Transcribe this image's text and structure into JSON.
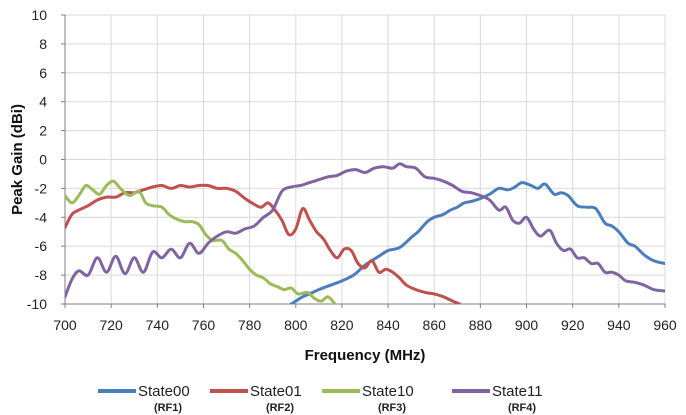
{
  "chart_data": {
    "type": "line",
    "title": "",
    "xlabel": "Frequency (MHz)",
    "ylabel": "Peak Gain (dBi)",
    "xlim": [
      700,
      960
    ],
    "ylim": [
      -10,
      10
    ],
    "x_ticks": [
      "700",
      "720",
      "740",
      "760",
      "780",
      "800",
      "820",
      "840",
      "860",
      "880",
      "900",
      "920",
      "940",
      "960"
    ],
    "y_ticks": [
      "10",
      "8",
      "6",
      "4",
      "2",
      "0",
      "-2",
      "-4",
      "-6",
      "-8",
      "-10"
    ],
    "grid": true,
    "legend_placement": "bottom",
    "series": [
      {
        "name": "State00",
        "sub": "(RF1)",
        "color": "#4a7ebb",
        "points": [
          [
            798,
            -10
          ],
          [
            800,
            -9.8
          ],
          [
            803,
            -9.5
          ],
          [
            806,
            -9.3
          ],
          [
            810,
            -9.0
          ],
          [
            815,
            -8.7
          ],
          [
            820,
            -8.4
          ],
          [
            825,
            -8.0
          ],
          [
            828,
            -7.6
          ],
          [
            830,
            -7.3
          ],
          [
            833,
            -7.0
          ],
          [
            836,
            -6.7
          ],
          [
            840,
            -6.3
          ],
          [
            845,
            -6.1
          ],
          [
            850,
            -5.4
          ],
          [
            853,
            -5.0
          ],
          [
            857,
            -4.3
          ],
          [
            860,
            -4.0
          ],
          [
            864,
            -3.8
          ],
          [
            867,
            -3.5
          ],
          [
            870,
            -3.3
          ],
          [
            873,
            -3.0
          ],
          [
            876,
            -2.9
          ],
          [
            880,
            -2.7
          ],
          [
            884,
            -2.4
          ],
          [
            888,
            -2.0
          ],
          [
            892,
            -2.1
          ],
          [
            895,
            -1.9
          ],
          [
            898,
            -1.6
          ],
          [
            902,
            -1.8
          ],
          [
            905,
            -2.0
          ],
          [
            908,
            -1.7
          ],
          [
            912,
            -2.4
          ],
          [
            915,
            -2.3
          ],
          [
            918,
            -2.5
          ],
          [
            922,
            -3.2
          ],
          [
            926,
            -3.3
          ],
          [
            930,
            -3.4
          ],
          [
            934,
            -4.4
          ],
          [
            937,
            -4.6
          ],
          [
            940,
            -5.0
          ],
          [
            944,
            -5.8
          ],
          [
            947,
            -6.0
          ],
          [
            951,
            -6.6
          ],
          [
            955,
            -7.0
          ],
          [
            960,
            -7.2
          ]
        ]
      },
      {
        "name": "State01",
        "sub": "(RF2)",
        "color": "#c0504d",
        "points": [
          [
            700,
            -4.7
          ],
          [
            703,
            -3.8
          ],
          [
            706,
            -3.5
          ],
          [
            710,
            -3.2
          ],
          [
            714,
            -2.8
          ],
          [
            718,
            -2.6
          ],
          [
            722,
            -2.6
          ],
          [
            726,
            -2.3
          ],
          [
            730,
            -2.3
          ],
          [
            734,
            -2.1
          ],
          [
            738,
            -1.9
          ],
          [
            742,
            -1.8
          ],
          [
            746,
            -2.0
          ],
          [
            750,
            -1.8
          ],
          [
            754,
            -1.9
          ],
          [
            758,
            -1.8
          ],
          [
            762,
            -1.8
          ],
          [
            766,
            -2.0
          ],
          [
            770,
            -2.0
          ],
          [
            774,
            -2.2
          ],
          [
            778,
            -2.7
          ],
          [
            782,
            -3.1
          ],
          [
            785,
            -3.3
          ],
          [
            788,
            -3.0
          ],
          [
            791,
            -3.5
          ],
          [
            794,
            -4.2
          ],
          [
            797,
            -5.2
          ],
          [
            800,
            -4.8
          ],
          [
            803,
            -3.4
          ],
          [
            806,
            -4.2
          ],
          [
            809,
            -5.0
          ],
          [
            812,
            -5.5
          ],
          [
            815,
            -6.3
          ],
          [
            818,
            -6.8
          ],
          [
            821,
            -6.2
          ],
          [
            824,
            -6.3
          ],
          [
            827,
            -7.2
          ],
          [
            830,
            -7.5
          ],
          [
            833,
            -7.0
          ],
          [
            836,
            -7.8
          ],
          [
            839,
            -7.6
          ],
          [
            842,
            -7.8
          ],
          [
            845,
            -8.2
          ],
          [
            848,
            -8.7
          ],
          [
            852,
            -9.0
          ],
          [
            856,
            -9.2
          ],
          [
            860,
            -9.3
          ],
          [
            864,
            -9.5
          ],
          [
            868,
            -9.8
          ],
          [
            871,
            -10.0
          ]
        ]
      },
      {
        "name": "State10",
        "sub": "(RF3)",
        "color": "#9bbb59",
        "points": [
          [
            700,
            -2.5
          ],
          [
            703,
            -3.0
          ],
          [
            706,
            -2.5
          ],
          [
            709,
            -1.8
          ],
          [
            712,
            -2.1
          ],
          [
            715,
            -2.4
          ],
          [
            718,
            -1.8
          ],
          [
            721,
            -1.5
          ],
          [
            724,
            -2.0
          ],
          [
            728,
            -2.5
          ],
          [
            732,
            -2.2
          ],
          [
            735,
            -3.0
          ],
          [
            738,
            -3.2
          ],
          [
            742,
            -3.3
          ],
          [
            745,
            -3.8
          ],
          [
            748,
            -4.1
          ],
          [
            752,
            -4.3
          ],
          [
            755,
            -4.3
          ],
          [
            758,
            -4.5
          ],
          [
            761,
            -5.2
          ],
          [
            764,
            -5.6
          ],
          [
            768,
            -5.6
          ],
          [
            771,
            -6.2
          ],
          [
            774,
            -6.5
          ],
          [
            777,
            -7.0
          ],
          [
            780,
            -7.6
          ],
          [
            783,
            -8.0
          ],
          [
            786,
            -8.2
          ],
          [
            789,
            -8.6
          ],
          [
            792,
            -8.8
          ],
          [
            795,
            -9.0
          ],
          [
            798,
            -8.9
          ],
          [
            801,
            -9.3
          ],
          [
            805,
            -9.2
          ],
          [
            808,
            -9.6
          ],
          [
            811,
            -9.8
          ],
          [
            814,
            -9.5
          ],
          [
            817,
            -10.0
          ]
        ]
      },
      {
        "name": "State11",
        "sub": "(RF4)",
        "color": "#8064a2",
        "points": [
          [
            700,
            -9.5
          ],
          [
            703,
            -8.3
          ],
          [
            706,
            -7.7
          ],
          [
            710,
            -8.0
          ],
          [
            714,
            -6.8
          ],
          [
            718,
            -7.8
          ],
          [
            722,
            -6.7
          ],
          [
            726,
            -7.9
          ],
          [
            730,
            -6.8
          ],
          [
            734,
            -7.8
          ],
          [
            738,
            -6.4
          ],
          [
            742,
            -6.8
          ],
          [
            746,
            -6.2
          ],
          [
            750,
            -6.8
          ],
          [
            754,
            -5.8
          ],
          [
            758,
            -6.5
          ],
          [
            762,
            -5.8
          ],
          [
            766,
            -5.3
          ],
          [
            770,
            -5.0
          ],
          [
            774,
            -5.1
          ],
          [
            778,
            -4.8
          ],
          [
            782,
            -4.6
          ],
          [
            786,
            -4.0
          ],
          [
            790,
            -3.5
          ],
          [
            794,
            -2.2
          ],
          [
            798,
            -1.9
          ],
          [
            802,
            -1.8
          ],
          [
            806,
            -1.6
          ],
          [
            810,
            -1.4
          ],
          [
            814,
            -1.2
          ],
          [
            818,
            -1.1
          ],
          [
            822,
            -0.8
          ],
          [
            826,
            -0.7
          ],
          [
            830,
            -0.9
          ],
          [
            834,
            -0.6
          ],
          [
            838,
            -0.5
          ],
          [
            842,
            -0.6
          ],
          [
            845,
            -0.3
          ],
          [
            848,
            -0.5
          ],
          [
            852,
            -0.6
          ],
          [
            856,
            -1.2
          ],
          [
            860,
            -1.3
          ],
          [
            864,
            -1.5
          ],
          [
            868,
            -1.8
          ],
          [
            872,
            -2.2
          ],
          [
            876,
            -2.3
          ],
          [
            880,
            -2.5
          ],
          [
            884,
            -2.8
          ],
          [
            888,
            -3.5
          ],
          [
            891,
            -3.3
          ],
          [
            894,
            -4.2
          ],
          [
            897,
            -4.4
          ],
          [
            900,
            -4.0
          ],
          [
            903,
            -4.8
          ],
          [
            906,
            -5.3
          ],
          [
            910,
            -4.9
          ],
          [
            913,
            -5.8
          ],
          [
            916,
            -6.3
          ],
          [
            919,
            -6.2
          ],
          [
            922,
            -6.8
          ],
          [
            925,
            -6.8
          ],
          [
            928,
            -7.2
          ],
          [
            931,
            -7.2
          ],
          [
            934,
            -7.8
          ],
          [
            937,
            -7.8
          ],
          [
            940,
            -8.0
          ],
          [
            943,
            -8.4
          ],
          [
            947,
            -8.5
          ],
          [
            951,
            -8.7
          ],
          [
            955,
            -9.0
          ],
          [
            960,
            -9.1
          ]
        ]
      }
    ]
  }
}
